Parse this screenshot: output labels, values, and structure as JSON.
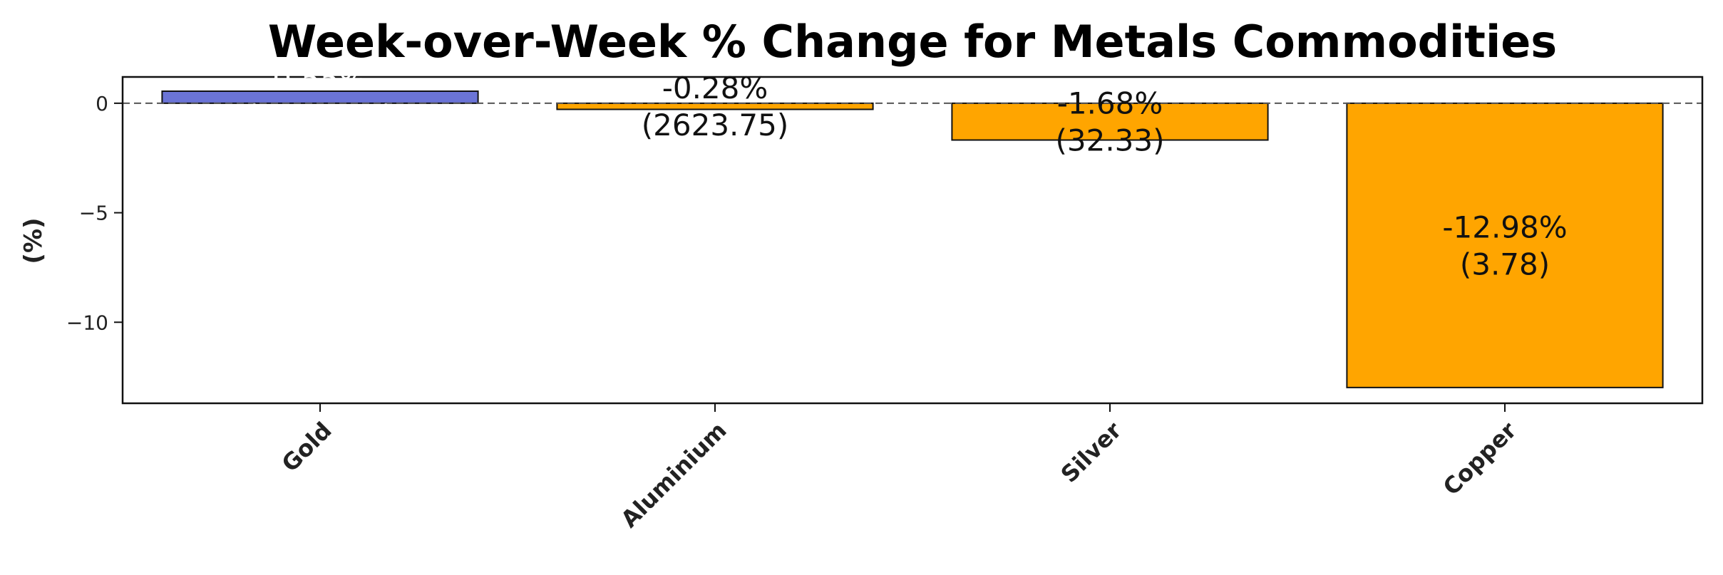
{
  "chart_data": {
    "type": "bar",
    "title": "Week-over-Week % Change for Metals Commodities",
    "xlabel": "",
    "ylabel": "(%)",
    "categories": [
      "Gold",
      "Aluminium",
      "Silver",
      "Copper"
    ],
    "values": [
      0.55,
      -0.28,
      -1.68,
      -12.98
    ],
    "prices": [
      2635.5,
      2623.75,
      32.33,
      3.78
    ],
    "bar_labels": [
      [
        "0.55%",
        "(2635.50)"
      ],
      [
        "-0.28%",
        "(2623.75)"
      ],
      [
        "-1.68%",
        "(32.33)"
      ],
      [
        "-12.98%",
        "(3.78)"
      ]
    ],
    "yticks": [
      0,
      -5,
      -10
    ],
    "ytick_labels": [
      "0",
      "−5",
      "−10"
    ],
    "ylim": [
      -13.7,
      1.2
    ],
    "reference_line": 0,
    "grid": false,
    "legend": "none",
    "colors": {
      "positive": "#6b74d6",
      "negative": "#ffa500",
      "edge": "#111111",
      "zero_line": "#555555",
      "positive_label_text": "#ffffff",
      "negative_label_text": "#111111"
    }
  }
}
